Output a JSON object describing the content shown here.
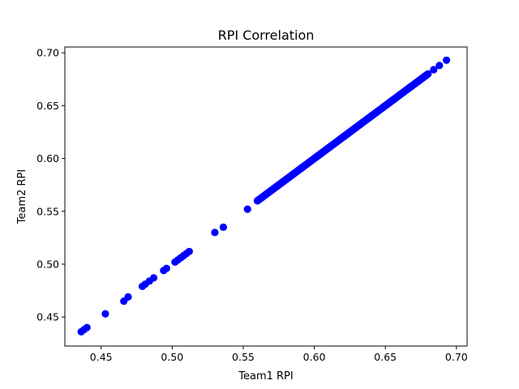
{
  "chart_data": {
    "type": "scatter",
    "title": "RPI Correlation",
    "xlabel": "Team1 RPI",
    "ylabel": "Team2 RPI",
    "xlim": [
      0.4245,
      0.7075
    ],
    "ylim": [
      0.4225,
      0.7055
    ],
    "xticks": [
      0.45,
      0.5,
      0.55,
      0.6,
      0.65,
      0.7
    ],
    "yticks": [
      0.45,
      0.5,
      0.55,
      0.6,
      0.65,
      0.7
    ],
    "xtick_labels": [
      "0.45",
      "0.50",
      "0.55",
      "0.60",
      "0.65",
      "0.70"
    ],
    "ytick_labels": [
      "0.45",
      "0.50",
      "0.55",
      "0.60",
      "0.65",
      "0.70"
    ],
    "grid": false,
    "marker_color": "#0000ff",
    "x": [
      0.436,
      0.438,
      0.44,
      0.453,
      0.466,
      0.469,
      0.479,
      0.481,
      0.484,
      0.487,
      0.494,
      0.496,
      0.502,
      0.504,
      0.506,
      0.508,
      0.51,
      0.512,
      0.53,
      0.536,
      0.553,
      0.56,
      0.563,
      0.567,
      0.572,
      0.578,
      0.584,
      0.59,
      0.596,
      0.602,
      0.608,
      0.614,
      0.62,
      0.626,
      0.632,
      0.638,
      0.644,
      0.65,
      0.656,
      0.662,
      0.668,
      0.674,
      0.679,
      0.684,
      0.688,
      0.693
    ],
    "y": [
      0.436,
      0.438,
      0.44,
      0.453,
      0.465,
      0.469,
      0.479,
      0.481,
      0.484,
      0.487,
      0.494,
      0.496,
      0.502,
      0.504,
      0.506,
      0.508,
      0.51,
      0.512,
      0.53,
      0.535,
      0.552,
      0.56,
      0.563,
      0.567,
      0.572,
      0.578,
      0.584,
      0.59,
      0.596,
      0.602,
      0.608,
      0.614,
      0.62,
      0.626,
      0.632,
      0.638,
      0.644,
      0.65,
      0.656,
      0.662,
      0.668,
      0.674,
      0.679,
      0.684,
      0.688,
      0.693
    ],
    "dense_band": {
      "x_start": 0.56,
      "x_end": 0.68
    }
  }
}
